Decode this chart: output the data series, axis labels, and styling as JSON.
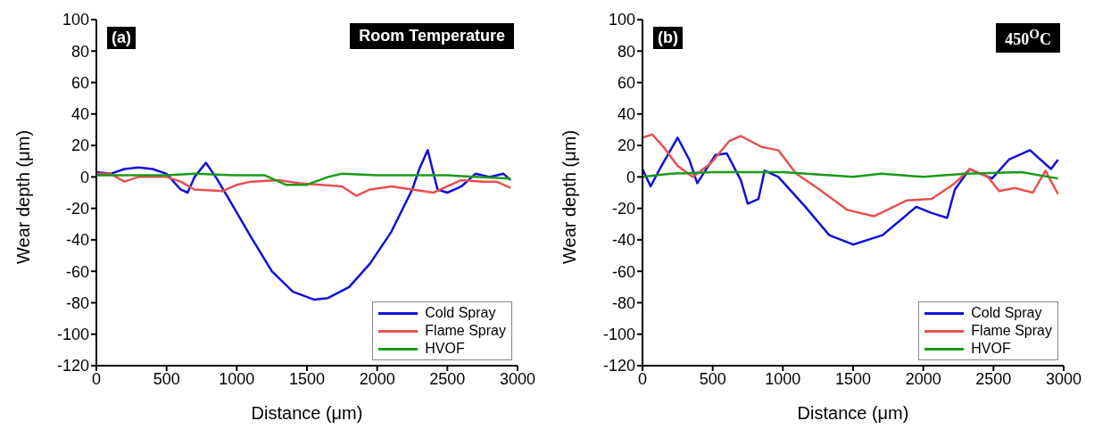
{
  "chart_data": [
    {
      "type": "line",
      "annotations": [
        "(a)",
        "Room Temperature"
      ],
      "xlabel": "Distance (μm)",
      "ylabel": "Wear depth (μm)",
      "xlim": [
        0,
        3000
      ],
      "ylim": [
        -120,
        100
      ],
      "xticks": [
        0,
        500,
        1000,
        1500,
        2000,
        2500,
        3000
      ],
      "yticks": [
        -120,
        -100,
        -80,
        -60,
        -40,
        -20,
        0,
        20,
        40,
        60,
        80,
        100
      ],
      "grid": false,
      "legend": "bottom right",
      "series": [
        {
          "name": "Cold Spray",
          "color": "#1010d8",
          "x": [
            0,
            100,
            200,
            300,
            400,
            500,
            600,
            650,
            700,
            780,
            850,
            950,
            1100,
            1250,
            1400,
            1550,
            1650,
            1800,
            1950,
            2100,
            2250,
            2300,
            2360,
            2430,
            2500,
            2600,
            2700,
            2800,
            2900,
            2950
          ],
          "values": [
            3,
            2,
            5,
            6,
            5,
            2,
            -8,
            -10,
            0,
            9,
            0,
            -15,
            -38,
            -60,
            -73,
            -78,
            -77,
            -70,
            -55,
            -35,
            -8,
            5,
            17,
            -8,
            -10,
            -6,
            2,
            0,
            2,
            -2
          ]
        },
        {
          "name": "Flame Spray",
          "color": "#e85050",
          "x": [
            0,
            100,
            200,
            300,
            500,
            600,
            700,
            900,
            1000,
            1100,
            1300,
            1450,
            1600,
            1750,
            1850,
            1950,
            2100,
            2250,
            2400,
            2500,
            2600,
            2750,
            2850,
            2950
          ],
          "values": [
            2,
            2,
            -3,
            0,
            0,
            -3,
            -8,
            -9,
            -5,
            -3,
            -2,
            -4,
            -5,
            -6,
            -12,
            -8,
            -6,
            -8,
            -10,
            -6,
            -2,
            -3,
            -3,
            -7
          ]
        },
        {
          "name": "HVOF",
          "color": "#1a9a1a",
          "x": [
            0,
            500,
            700,
            1000,
            1200,
            1350,
            1500,
            1650,
            1750,
            2000,
            2500,
            2950
          ],
          "values": [
            1,
            1,
            2,
            1,
            1,
            -5,
            -5,
            0,
            2,
            1,
            1,
            -1
          ]
        }
      ]
    },
    {
      "type": "line",
      "annotations": [
        "(b)",
        "450$^{O}$C"
      ],
      "xlabel": "Distance (μm)",
      "ylabel": "Wear depth (μm)",
      "xlim": [
        0,
        3000
      ],
      "ylim": [
        -120,
        100
      ],
      "xticks": [
        0,
        500,
        1000,
        1500,
        2000,
        2500,
        3000
      ],
      "yticks": [
        -120,
        -100,
        -80,
        -60,
        -40,
        -20,
        0,
        20,
        40,
        60,
        80,
        100
      ],
      "grid": false,
      "legend": "bottom right",
      "series": [
        {
          "name": "Cold Spray",
          "color": "#1010d8",
          "x": [
            0,
            58,
            135,
            250,
            333,
            390,
            520,
            600,
            700,
            750,
            826,
            870,
            968,
            1160,
            1330,
            1500,
            1710,
            1950,
            2060,
            2170,
            2225,
            2330,
            2490,
            2610,
            2760,
            2910,
            2960
          ],
          "values": [
            5,
            -6,
            7,
            25,
            11,
            -4,
            14,
            15,
            -2,
            -17,
            -14,
            4,
            0,
            -19,
            -37,
            -43,
            -37,
            -19,
            -23,
            -26,
            -8,
            5,
            -1,
            11,
            17,
            5,
            11
          ]
        },
        {
          "name": "Flame Spray",
          "color": "#e85050",
          "x": [
            0,
            70,
            150,
            250,
            360,
            490,
            620,
            700,
            850,
            968,
            1095,
            1245,
            1460,
            1650,
            1880,
            2060,
            2225,
            2330,
            2460,
            2540,
            2650,
            2780,
            2870,
            2960
          ],
          "values": [
            25,
            27,
            19,
            7,
            0,
            9,
            23,
            26,
            19,
            17,
            2,
            -7,
            -21,
            -25,
            -15,
            -14,
            -4,
            5,
            0,
            -9,
            -7,
            -10,
            4,
            -11
          ]
        },
        {
          "name": "HVOF",
          "color": "#1a9a1a",
          "x": [
            0,
            200,
            500,
            1000,
            1500,
            1700,
            2000,
            2300,
            2700,
            2960
          ],
          "values": [
            0,
            2,
            3,
            3,
            0,
            2,
            0,
            2,
            3,
            -1
          ]
        }
      ]
    }
  ]
}
